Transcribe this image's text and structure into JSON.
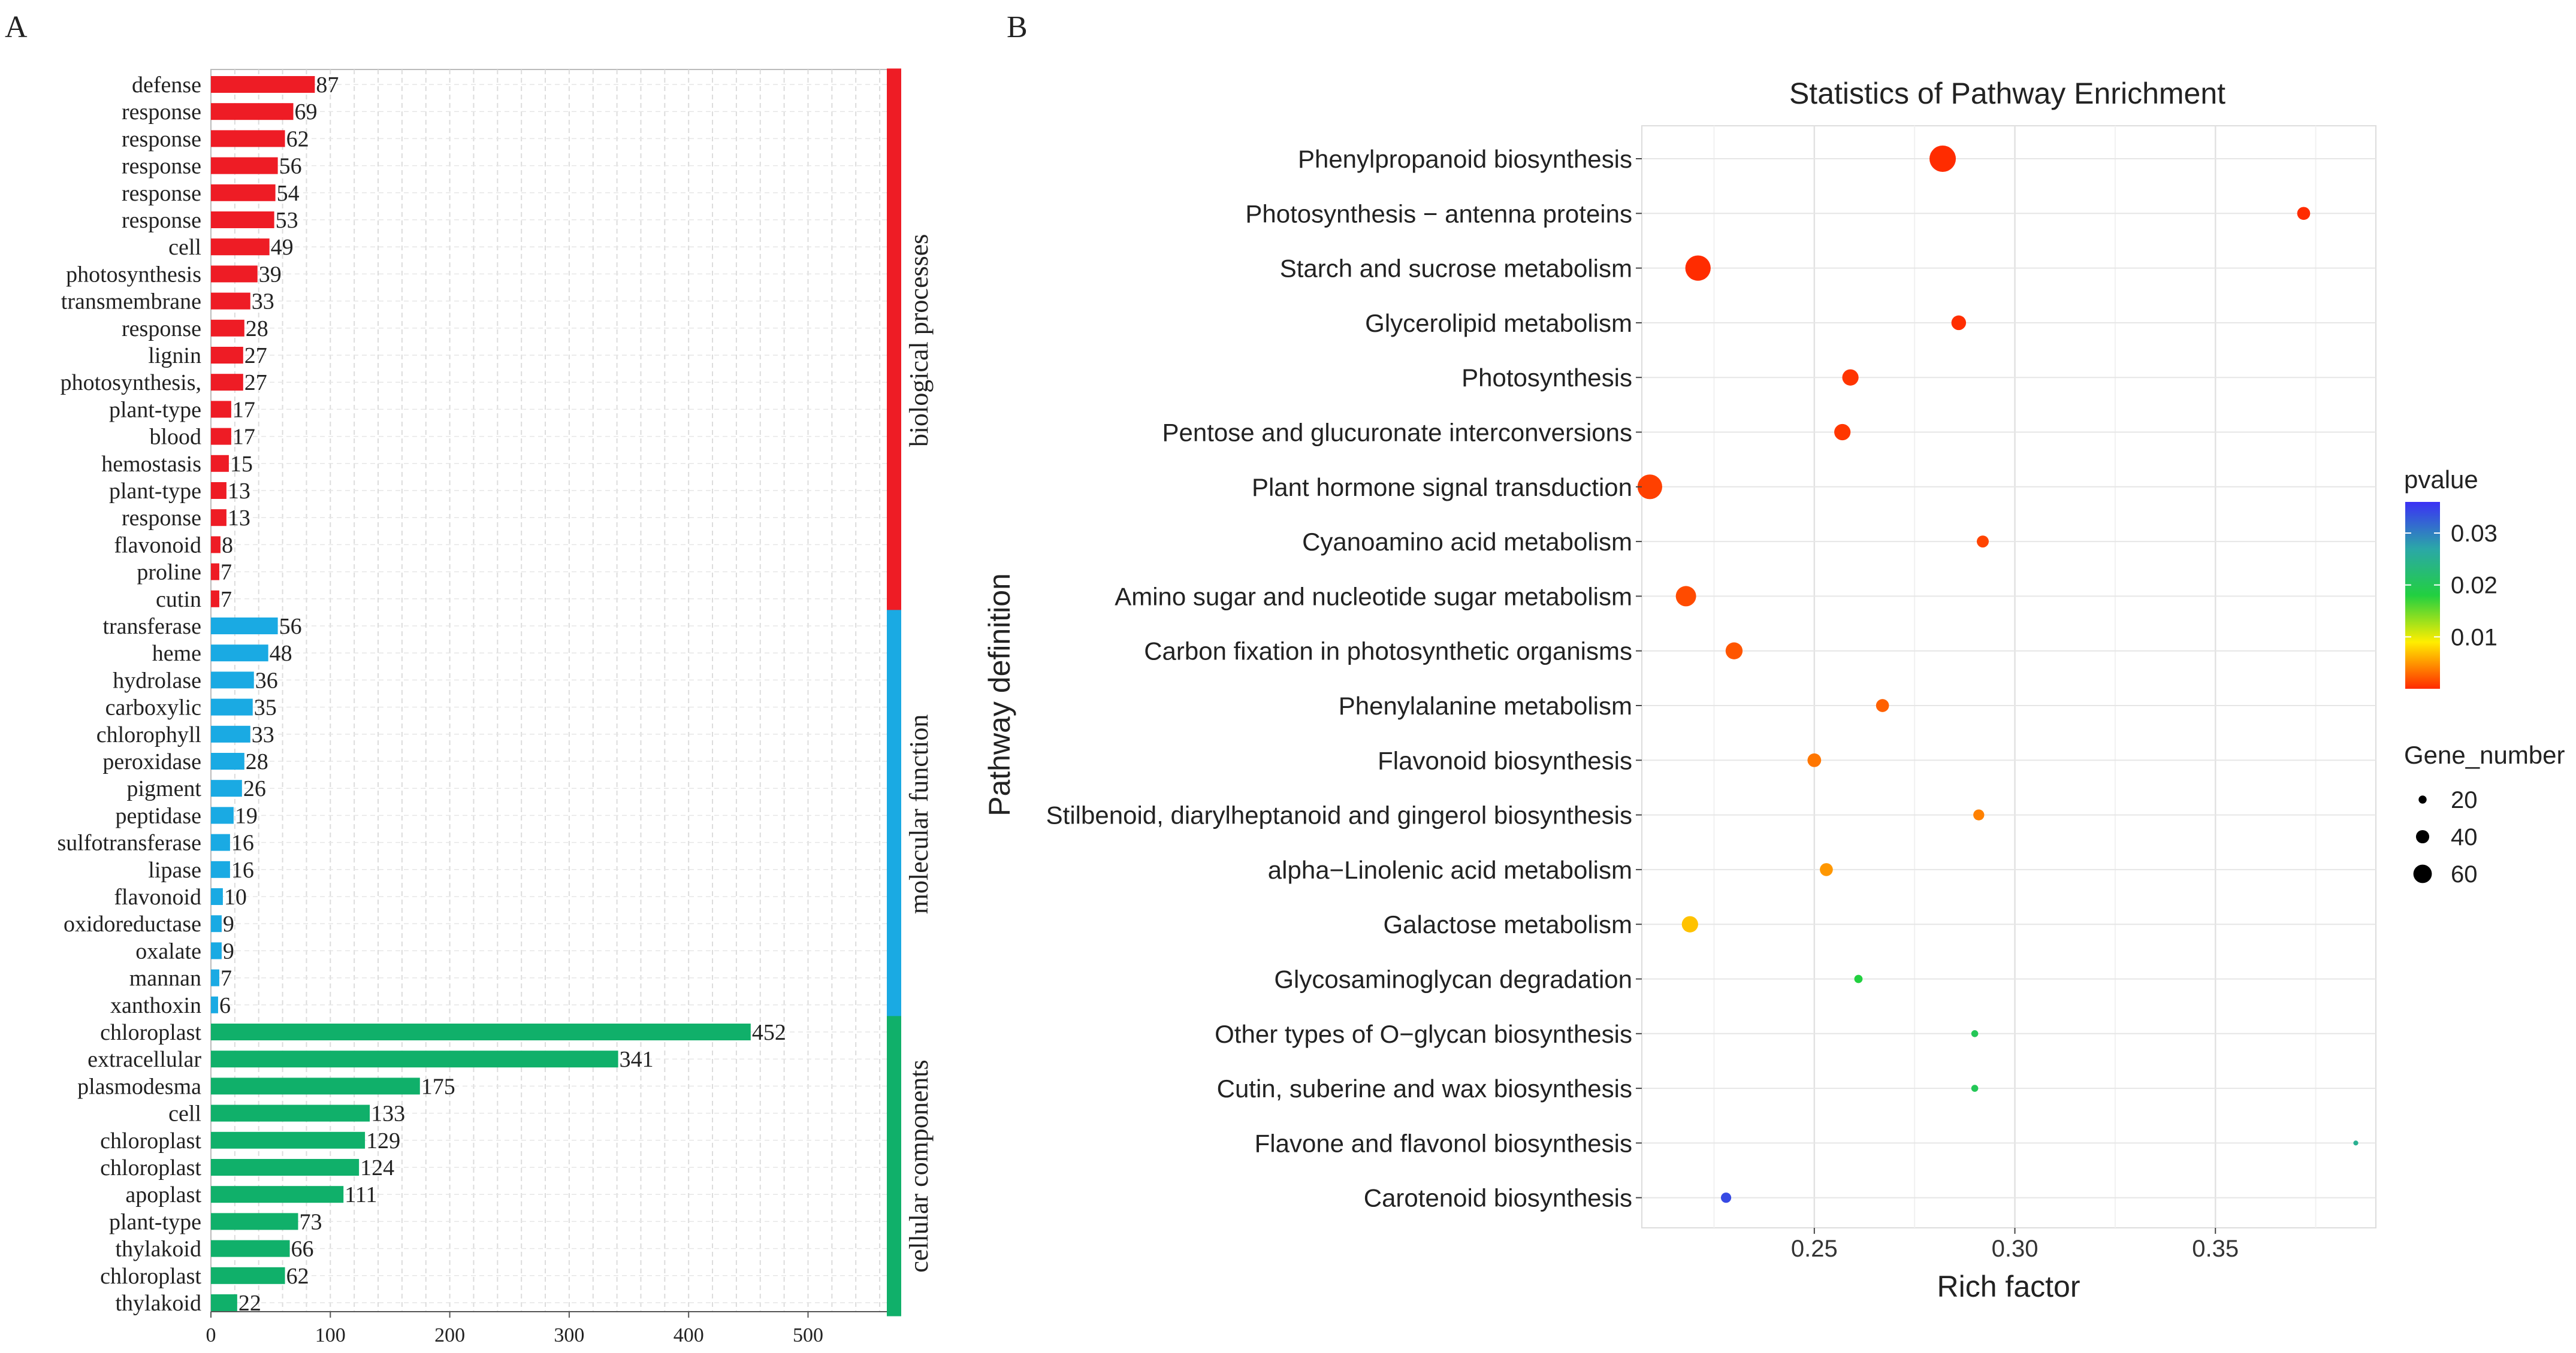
{
  "chart_data": [
    {
      "panel_letter": "A",
      "type": "bar",
      "orientation": "horizontal",
      "categories": [
        "defense",
        "response",
        "response",
        "response",
        "response",
        "response",
        "cell",
        "photosynthesis",
        "transmembrane",
        "response",
        "lignin",
        "photosynthesis,",
        "plant-type",
        "blood",
        "hemostasis",
        "plant-type",
        "response",
        "flavonoid",
        "proline",
        "cutin",
        "transferase",
        "heme",
        "hydrolase",
        "carboxylic",
        "chlorophyll",
        "peroxidase",
        "pigment",
        "peptidase",
        "sulfotransferase",
        "lipase",
        "flavonoid",
        "oxidoreductase",
        "oxalate",
        "mannan",
        "xanthoxin",
        "chloroplast",
        "extracellular",
        "plasmodesma",
        "cell",
        "chloroplast",
        "chloroplast",
        "apoplast",
        "plant-type",
        "thylakoid",
        "chloroplast",
        "thylakoid"
      ],
      "values": [
        87,
        69,
        62,
        56,
        54,
        53,
        49,
        39,
        33,
        28,
        27,
        27,
        17,
        17,
        15,
        13,
        13,
        8,
        7,
        7,
        56,
        48,
        36,
        35,
        33,
        28,
        26,
        19,
        16,
        16,
        10,
        9,
        9,
        7,
        6,
        452,
        341,
        175,
        133,
        129,
        124,
        111,
        73,
        66,
        62,
        22
      ],
      "groups": [
        {
          "name": "biological processes",
          "color": "#ee1c25",
          "start": 0,
          "end": 19
        },
        {
          "name": "molecular function",
          "color": "#1aaae3",
          "start": 20,
          "end": 34
        },
        {
          "name": "cellular components",
          "color": "#10b06a",
          "start": 35,
          "end": 45
        }
      ],
      "xlim": [
        0,
        570
      ],
      "xticks": [
        0,
        100,
        200,
        300,
        400,
        500
      ],
      "title": "",
      "xlabel": "",
      "ylabel": "",
      "grid": true
    },
    {
      "panel_letter": "B",
      "type": "scatter",
      "title": "Statistics of Pathway Enrichment",
      "xlabel": "Rich factor",
      "ylabel": "Pathway definition",
      "xlim": [
        0.207,
        0.39
      ],
      "xticks": [
        0.25,
        0.3,
        0.35
      ],
      "xtick_labels": [
        "0.25",
        "0.30",
        "0.35"
      ],
      "grid": true,
      "points": [
        {
          "pathway": "Phenylpropanoid biosynthesis",
          "rich_factor": 0.282,
          "gene_number": 68,
          "pvalue": 0.0001
        },
        {
          "pathway": "Photosynthesis − antenna proteins",
          "rich_factor": 0.372,
          "gene_number": 28,
          "pvalue": 0.0001
        },
        {
          "pathway": "Starch and sucrose metabolism",
          "rich_factor": 0.221,
          "gene_number": 65,
          "pvalue": 0.0001
        },
        {
          "pathway": "Glycerolipid metabolism",
          "rich_factor": 0.286,
          "gene_number": 33,
          "pvalue": 0.0002
        },
        {
          "pathway": "Photosynthesis",
          "rich_factor": 0.259,
          "gene_number": 38,
          "pvalue": 0.0005
        },
        {
          "pathway": "Pentose and glucuronate interconversions",
          "rich_factor": 0.257,
          "gene_number": 38,
          "pvalue": 0.0006
        },
        {
          "pathway": "Plant hormone signal transduction",
          "rich_factor": 0.209,
          "gene_number": 63,
          "pvalue": 0.001
        },
        {
          "pathway": "Cyanoamino acid metabolism",
          "rich_factor": 0.292,
          "gene_number": 25,
          "pvalue": 0.0012
        },
        {
          "pathway": "Amino sugar and nucleotide sugar metabolism",
          "rich_factor": 0.218,
          "gene_number": 50,
          "pvalue": 0.0015
        },
        {
          "pathway": "Carbon fixation in photosynthetic organisms",
          "rich_factor": 0.23,
          "gene_number": 40,
          "pvalue": 0.002
        },
        {
          "pathway": "Phenylalanine metabolism",
          "rich_factor": 0.267,
          "gene_number": 28,
          "pvalue": 0.0025
        },
        {
          "pathway": "Flavonoid biosynthesis",
          "rich_factor": 0.25,
          "gene_number": 30,
          "pvalue": 0.0035
        },
        {
          "pathway": "Stilbenoid, diarylheptanoid and gingerol biosynthesis",
          "rich_factor": 0.291,
          "gene_number": 22,
          "pvalue": 0.004
        },
        {
          "pathway": "alpha−Linolenic acid metabolism",
          "rich_factor": 0.253,
          "gene_number": 28,
          "pvalue": 0.005
        },
        {
          "pathway": "Galactose metabolism",
          "rich_factor": 0.219,
          "gene_number": 38,
          "pvalue": 0.007
        },
        {
          "pathway": "Glycosaminoglycan degradation",
          "rich_factor": 0.261,
          "gene_number": 14,
          "pvalue": 0.018
        },
        {
          "pathway": "Other types of O−glycan biosynthesis",
          "rich_factor": 0.29,
          "gene_number": 10,
          "pvalue": 0.02
        },
        {
          "pathway": "Cutin, suberine and wax biosynthesis",
          "rich_factor": 0.29,
          "gene_number": 10,
          "pvalue": 0.02
        },
        {
          "pathway": "Flavone and flavonol biosynthesis",
          "rich_factor": 0.385,
          "gene_number": 4,
          "pvalue": 0.025
        },
        {
          "pathway": "Carotenoid biosynthesis",
          "rich_factor": 0.228,
          "gene_number": 20,
          "pvalue": 0.034
        }
      ],
      "color_legend": {
        "title": "pvalue",
        "range": [
          0,
          0.036
        ],
        "ticks": [
          0.01,
          0.02,
          0.03
        ],
        "tick_labels": [
          "0.01",
          "0.02",
          "0.03"
        ],
        "low_color": "#ff2a00",
        "mid_low_color": "#ffee00",
        "mid_color": "#22d040",
        "mid_high_color": "#2ba7a8",
        "high_color": "#3b30f5"
      },
      "size_legend": {
        "title": "Gene_number",
        "values": [
          20,
          40,
          60
        ],
        "labels": [
          "20",
          "40",
          "60"
        ]
      }
    }
  ]
}
